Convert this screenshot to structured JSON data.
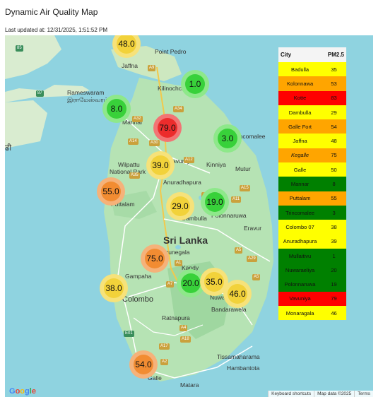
{
  "page": {
    "title": "Dynamic Air Quality Map",
    "updated": "Last updated at: 12/31/2025, 1:51:52 PM"
  },
  "map": {
    "country_label": "Sri Lanka",
    "places": {
      "jaffna": "Jaffna",
      "point_pedro": "Point Pedro",
      "kilinochchi": "Kilinochchi",
      "rameswaram": "Rameswaram",
      "rameswaram_ta": "இராமேஸ்வரம்",
      "mannar": "Mannar",
      "vavuniya": "Vavuniya",
      "trincomalee": "Trincomalee",
      "kinniya": "Kinniya",
      "mutur": "Mutur",
      "wilpattu": "Wilpattu",
      "wilpattu2": "National Park",
      "anuradhapura": "Anuradhapura",
      "puttalam": "Puttalam",
      "dambulla": "Dambulla",
      "polonnaruwa": "Polonnaruwa",
      "eravur": "Eravur",
      "kurunegala": "Kurunegala",
      "kandy": "Kandy",
      "gampaha": "Gampaha",
      "colombo": "Colombo",
      "nuwara_eliya": "Nuwara Eliya",
      "bandarawela": "Bandarawela",
      "ratnapura": "Ratnapura",
      "hambantota": "Hambantota",
      "tissamaharama": "Tissamaharama",
      "galle": "Galle",
      "matara": "Matara",
      "left_edge": "ढी"
    },
    "roads": [
      "A9",
      "A32",
      "A34",
      "A30",
      "A14",
      "A12",
      "A15",
      "A6",
      "A11",
      "A1",
      "A5",
      "A7",
      "E01",
      "A4",
      "A17",
      "A18",
      "A2",
      "A3",
      "A9",
      "A35",
      "A20",
      "A28",
      "A29",
      "A26",
      "A16",
      "A5",
      "A2",
      "85",
      "87"
    ],
    "google_logo": "Google",
    "attribution": [
      "Keyboard shortcuts",
      "Map data ©2025",
      "Terms"
    ]
  },
  "markers": [
    {
      "city": "Jaffna",
      "label": "48.0",
      "color": "#f2d23a",
      "ring": "#f6e27a"
    },
    {
      "city": "Mullaitivu",
      "label": "1.0",
      "color": "#38d13a",
      "ring": "#8ee88a"
    },
    {
      "city": "Mannar",
      "label": "8.0",
      "color": "#38d13a",
      "ring": "#8ee88a"
    },
    {
      "city": "Vavuniya",
      "label": "79.0",
      "color": "#ec2c2c",
      "ring": "#f27474"
    },
    {
      "city": "Trincomalee",
      "label": "3.0",
      "color": "#38d13a",
      "ring": "#8ee88a"
    },
    {
      "city": "Anuradhapura",
      "label": "39.0",
      "color": "#f2d23a",
      "ring": "#f6e27a"
    },
    {
      "city": "Puttalam",
      "label": "55.0",
      "color": "#f28c32",
      "ring": "#f5b27a"
    },
    {
      "city": "Polonnaruwa",
      "label": "19.0",
      "color": "#38d13a",
      "ring": "#8ee88a"
    },
    {
      "city": "Dambulla",
      "label": "29.0",
      "color": "#f2d23a",
      "ring": "#f6e27a"
    },
    {
      "city": "Kegalle",
      "label": "75.0",
      "color": "#f28c32",
      "ring": "#f5b27a"
    },
    {
      "city": "Colombo 07",
      "label": "38.0",
      "color": "#f2d23a",
      "ring": "#f6e27a"
    },
    {
      "city": "Nuwaraeliya",
      "label": "20.0",
      "color": "#38d13a",
      "ring": "#8ee88a"
    },
    {
      "city": "Badulla",
      "label": "35.0",
      "color": "#f2d23a",
      "ring": "#f6e27a"
    },
    {
      "city": "Monaragala",
      "label": "46.0",
      "color": "#f2d23a",
      "ring": "#f6e27a"
    },
    {
      "city": "Galle Fort",
      "label": "54.0",
      "color": "#f28c32",
      "ring": "#f5b27a"
    }
  ],
  "legend": {
    "header_city": "City",
    "header_value": "PM2.5",
    "rows": [
      {
        "city": "Badulla",
        "value": "35",
        "bg": "#ffff00",
        "fg": "#111111",
        "italic": false
      },
      {
        "city": "Kolonnawa",
        "value": "53",
        "bg": "#ffa500",
        "fg": "#111111",
        "italic": false
      },
      {
        "city": "Kotte",
        "value": "83",
        "bg": "#ff0000",
        "fg": "#111111",
        "italic": false
      },
      {
        "city": "Dambulla",
        "value": "29",
        "bg": "#ffff00",
        "fg": "#111111",
        "italic": false
      },
      {
        "city": "Galle Fort",
        "value": "54",
        "bg": "#ffa500",
        "fg": "#111111",
        "italic": false
      },
      {
        "city": "Jaffna",
        "value": "48",
        "bg": "#ffff00",
        "fg": "#111111",
        "italic": false
      },
      {
        "city": "Kegalle",
        "value": "75",
        "bg": "#ffa500",
        "fg": "#111111",
        "italic": true
      },
      {
        "city": "Galle",
        "value": "50",
        "bg": "#ffff00",
        "fg": "#111111",
        "italic": false
      },
      {
        "city": "Mannar",
        "value": "8",
        "bg": "#008000",
        "fg": "#111111",
        "italic": false
      },
      {
        "city": "Puttalam",
        "value": "55",
        "bg": "#ffa500",
        "fg": "#111111",
        "italic": false
      },
      {
        "city": "Trincomalee",
        "value": "3",
        "bg": "#008000",
        "fg": "#111111",
        "italic": false
      },
      {
        "city": "Colombo 07",
        "value": "38",
        "bg": "#ffff00",
        "fg": "#111111",
        "italic": false
      },
      {
        "city": "Anuradhapura",
        "value": "39",
        "bg": "#ffff00",
        "fg": "#111111",
        "italic": false
      },
      {
        "city": "Mullaitivu",
        "value": "1",
        "bg": "#008000",
        "fg": "#111111",
        "italic": false
      },
      {
        "city": "Nuwaraeliya",
        "value": "20",
        "bg": "#008000",
        "fg": "#111111",
        "italic": false
      },
      {
        "city": "Polonnaruwa",
        "value": "19",
        "bg": "#008000",
        "fg": "#111111",
        "italic": false
      },
      {
        "city": "Vavuniya",
        "value": "79",
        "bg": "#ff0000",
        "fg": "#111111",
        "italic": false
      },
      {
        "city": "Monaragala",
        "value": "46",
        "bg": "#ffff00",
        "fg": "#111111",
        "italic": false
      }
    ]
  }
}
